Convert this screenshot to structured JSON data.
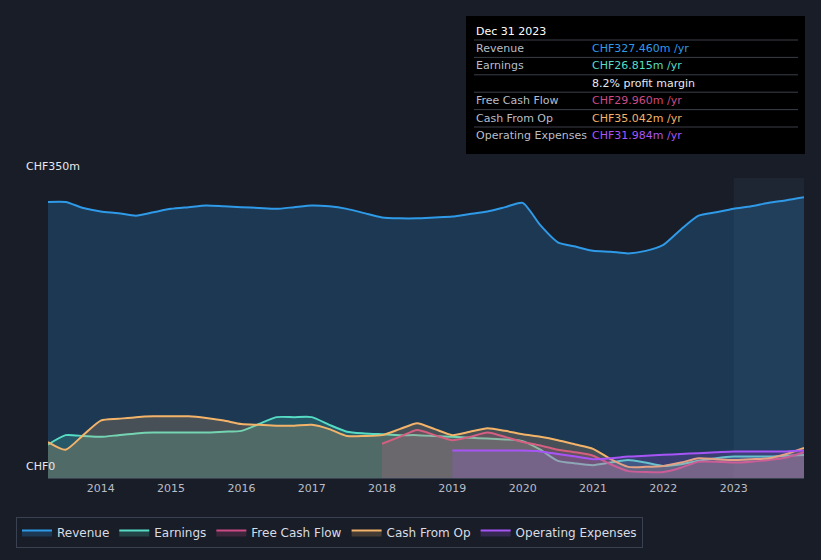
{
  "chart_data": {
    "type": "area",
    "x": [
      2013.25,
      2013.5,
      2013.75,
      2014,
      2014.25,
      2014.5,
      2014.75,
      2015,
      2015.25,
      2015.5,
      2015.75,
      2016,
      2016.25,
      2016.5,
      2016.75,
      2017,
      2017.25,
      2017.5,
      2017.75,
      2018,
      2018.25,
      2018.5,
      2018.75,
      2019,
      2019.25,
      2019.5,
      2019.75,
      2020,
      2020.25,
      2020.5,
      2020.75,
      2021,
      2021.25,
      2021.5,
      2021.75,
      2022,
      2022.25,
      2022.5,
      2022.75,
      2023,
      2023.25,
      2023.5,
      2023.75,
      2024
    ],
    "series": [
      {
        "name": "Revenue",
        "color": "#2f9ae8",
        "values": [
          322,
          322,
          315,
          311,
          309,
          306,
          310,
          314,
          316,
          318,
          317,
          316,
          315,
          314,
          316,
          318,
          317,
          314,
          309,
          304,
          303,
          303,
          304,
          305,
          308,
          311,
          316,
          321,
          295,
          275,
          270,
          265,
          264,
          262,
          265,
          272,
          290,
          306,
          310,
          314,
          317,
          321,
          324,
          327.46
        ]
      },
      {
        "name": "Earnings",
        "color": "#56dcc4",
        "values": [
          39,
          50,
          49,
          48,
          50,
          52,
          53,
          53,
          53,
          53,
          54,
          55,
          63,
          71,
          71,
          71,
          62,
          54,
          52,
          51,
          50,
          50,
          49,
          48,
          47,
          46,
          45,
          43,
          33,
          20,
          17,
          15,
          18,
          21,
          18,
          14,
          16,
          20,
          23,
          25,
          25,
          25,
          26,
          26.815
        ]
      },
      {
        "name": "Free Cash Flow",
        "color": "#cc4a86",
        "values": [
          null,
          null,
          null,
          null,
          null,
          null,
          null,
          null,
          null,
          null,
          null,
          null,
          null,
          null,
          null,
          null,
          null,
          null,
          null,
          40,
          48,
          56,
          50,
          44,
          48,
          53,
          48,
          42,
          38,
          33,
          30,
          26,
          16,
          8,
          7,
          7,
          12,
          19,
          19,
          18,
          19,
          21,
          24,
          29.96
        ]
      },
      {
        "name": "Cash From Op",
        "color": "#f3b46a",
        "values": [
          42,
          33,
          50,
          67,
          69,
          71,
          72,
          72,
          72,
          70,
          67,
          63,
          62,
          61,
          61,
          62,
          57,
          49,
          49,
          50,
          57,
          64,
          57,
          50,
          54,
          58,
          55,
          51,
          48,
          44,
          39,
          34,
          22,
          13,
          13,
          14,
          18,
          23,
          22,
          21,
          22,
          23,
          28,
          35.042
        ]
      },
      {
        "name": "Operating Expenses",
        "color": "#a855f7",
        "values": [
          null,
          null,
          null,
          null,
          null,
          null,
          null,
          null,
          null,
          null,
          null,
          null,
          null,
          null,
          null,
          null,
          null,
          null,
          null,
          null,
          null,
          null,
          null,
          32,
          32,
          32,
          32,
          32,
          31,
          28,
          25,
          22,
          23,
          25,
          26,
          27,
          28,
          29,
          30,
          31,
          31,
          31,
          31,
          31.984
        ]
      }
    ],
    "xlim": [
      2013.25,
      2024
    ],
    "xticks": [
      2014,
      2015,
      2016,
      2017,
      2018,
      2019,
      2020,
      2021,
      2022,
      2023
    ],
    "ylim": [
      0,
      350
    ],
    "yticks": [
      {
        "value": 0,
        "label": "CHF0"
      },
      {
        "value": 350,
        "label": "CHF350m"
      }
    ],
    "grid": true,
    "legend": "bottom",
    "annotations": [
      {
        "text": "Dec 31 2023"
      },
      {
        "label": "Revenue",
        "text": "CHF327.460m /yr"
      },
      {
        "label": "Earnings",
        "text": "CHF26.815m /yr"
      },
      {
        "text": "8.2% profit margin"
      },
      {
        "label": "Free Cash Flow",
        "text": "CHF29.960m /yr"
      },
      {
        "label": "Cash From Op",
        "text": "CHF35.042m /yr"
      },
      {
        "label": "Operating Expenses",
        "text": "CHF31.984m /yr"
      }
    ]
  }
}
